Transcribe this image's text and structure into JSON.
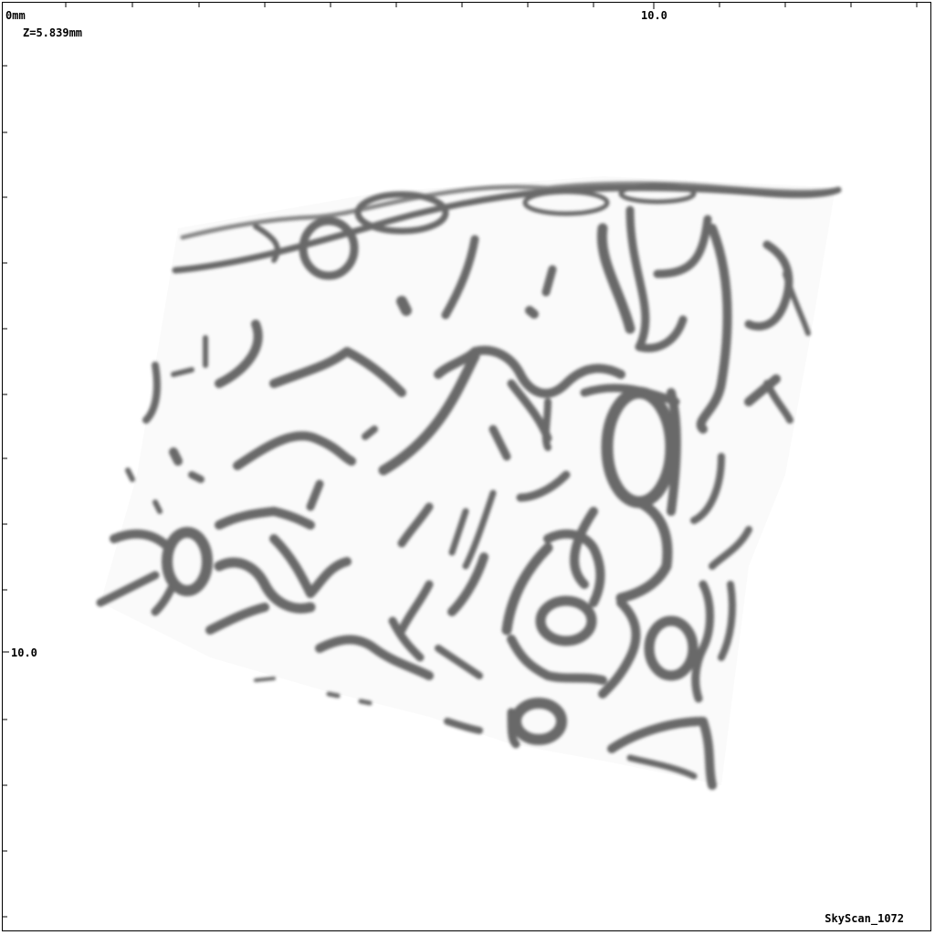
{
  "scan": {
    "origin_label": "0mm",
    "slice_position": "Z=5.839mm",
    "x_tick_label": "10.0",
    "y_tick_label": "10.0",
    "scanner": "SkyScan_1072"
  },
  "colors": {
    "background": "#ffffff",
    "bone": "#5a5a5a",
    "frame": "#000000"
  }
}
